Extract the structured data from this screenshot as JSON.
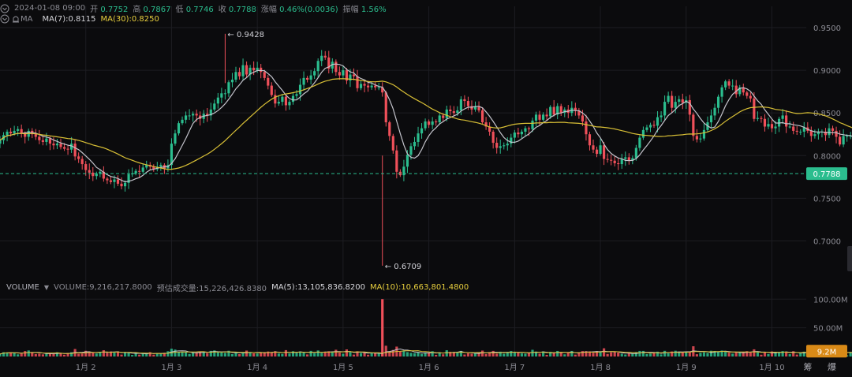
{
  "header": {
    "datetime": "2024-01-08 09:00",
    "open_label": "开",
    "open": "0.7752",
    "high_label": "高",
    "high": "0.7867",
    "low_label": "低",
    "low": "0.7746",
    "close_label": "收",
    "close": "0.7788",
    "change_label": "涨幅",
    "change": "0.46%(0.0036)",
    "amplitude_label": "振幅",
    "amplitude": "1.56%"
  },
  "ma_legend": {
    "name": "MA",
    "ma7": "MA(7):0.8115",
    "ma30": "MA(30):0.8250"
  },
  "volume_legend": {
    "name": "VOLUME",
    "volume": "VOLUME:9,216,217.8000",
    "est": "预估成交量:15,226,426.8380",
    "ma5": "MA(5):13,105,836.8200",
    "ma10": "MA(10):10,663,801.4800"
  },
  "corner_text": "筹 爆",
  "colors": {
    "up": "#2bbd8e",
    "down": "#f0505a",
    "ma7": "#c4c4cc",
    "ma30": "#d9c036",
    "grid": "#1d1d22",
    "bg": "#0b0b0d"
  },
  "chart_data": {
    "type": "candlestick",
    "price_axis": {
      "ticks": [
        "0.9500",
        "0.9000",
        "0.8500",
        "0.8000",
        "0.7500",
        "0.7000"
      ]
    },
    "volume_axis": {
      "ticks": [
        "100.00M",
        "50.00M"
      ]
    },
    "x_ticks": [
      "1月 2",
      "1月 3",
      "1月 4",
      "1月 5",
      "1月 6",
      "1月 7",
      "1月 8",
      "1月 9",
      "1月 10"
    ],
    "last_price": "0.7788",
    "last_volume": "9.2M",
    "max_marker": "0.9428",
    "min_marker": "0.6709",
    "ylim": [
      0.668,
      0.975
    ],
    "x_range_days": [
      1.0,
      10.4
    ],
    "timeframe_hours": 1,
    "start_day": 1.0,
    "closes": [
      0.818,
      0.824,
      0.828,
      0.826,
      0.829,
      0.831,
      0.826,
      0.822,
      0.829,
      0.825,
      0.822,
      0.818,
      0.816,
      0.82,
      0.814,
      0.812,
      0.814,
      0.81,
      0.808,
      0.807,
      0.814,
      0.799,
      0.796,
      0.79,
      0.783,
      0.78,
      0.776,
      0.779,
      0.781,
      0.773,
      0.771,
      0.769,
      0.772,
      0.767,
      0.764,
      0.768,
      0.778,
      0.779,
      0.782,
      0.781,
      0.786,
      0.789,
      0.787,
      0.784,
      0.787,
      0.789,
      0.785,
      0.789,
      0.814,
      0.826,
      0.838,
      0.842,
      0.847,
      0.847,
      0.849,
      0.847,
      0.843,
      0.849,
      0.847,
      0.854,
      0.861,
      0.868,
      0.873,
      0.873,
      0.886,
      0.889,
      0.898,
      0.893,
      0.906,
      0.895,
      0.903,
      0.9,
      0.903,
      0.898,
      0.891,
      0.882,
      0.871,
      0.861,
      0.863,
      0.869,
      0.859,
      0.863,
      0.87,
      0.872,
      0.883,
      0.891,
      0.889,
      0.894,
      0.899,
      0.911,
      0.917,
      0.915,
      0.902,
      0.91,
      0.898,
      0.894,
      0.9,
      0.888,
      0.895,
      0.893,
      0.879,
      0.884,
      0.882,
      0.88,
      0.882,
      0.88,
      0.88,
      0.874,
      0.839,
      0.823,
      0.806,
      0.781,
      0.777,
      0.787,
      0.801,
      0.811,
      0.816,
      0.826,
      0.832,
      0.84,
      0.836,
      0.84,
      0.839,
      0.847,
      0.844,
      0.854,
      0.852,
      0.85,
      0.853,
      0.866,
      0.864,
      0.858,
      0.854,
      0.857,
      0.853,
      0.839,
      0.834,
      0.828,
      0.815,
      0.809,
      0.811,
      0.812,
      0.814,
      0.821,
      0.827,
      0.825,
      0.828,
      0.832,
      0.831,
      0.841,
      0.848,
      0.842,
      0.848,
      0.846,
      0.857,
      0.848,
      0.858,
      0.85,
      0.854,
      0.85,
      0.856,
      0.853,
      0.847,
      0.84,
      0.825,
      0.812,
      0.807,
      0.802,
      0.812,
      0.796,
      0.795,
      0.794,
      0.791,
      0.79,
      0.796,
      0.798,
      0.794,
      0.797,
      0.809,
      0.821,
      0.83,
      0.833,
      0.836,
      0.835,
      0.845,
      0.847,
      0.863,
      0.87,
      0.856,
      0.863,
      0.866,
      0.862,
      0.865,
      0.848,
      0.823,
      0.819,
      0.82,
      0.83,
      0.839,
      0.847,
      0.856,
      0.869,
      0.88,
      0.887,
      0.882,
      0.882,
      0.872,
      0.88,
      0.874,
      0.87,
      0.867,
      0.843,
      0.844,
      0.843,
      0.834,
      0.837,
      0.832,
      0.834,
      0.843,
      0.847,
      0.834,
      0.834,
      0.829,
      0.828,
      0.828,
      0.833,
      0.829,
      0.823,
      0.825,
      0.828,
      0.828,
      0.824,
      0.832,
      0.829,
      0.822,
      0.813,
      0.823,
      0.823,
      0.823,
      0.819,
      0.83,
      0.835,
      0.828,
      0.833,
      0.831,
      0.842,
      0.838,
      0.834,
      0.831,
      0.836,
      0.837,
      0.82,
      0.815,
      0.804,
      0.8,
      0.785,
      0.779
    ]
  }
}
